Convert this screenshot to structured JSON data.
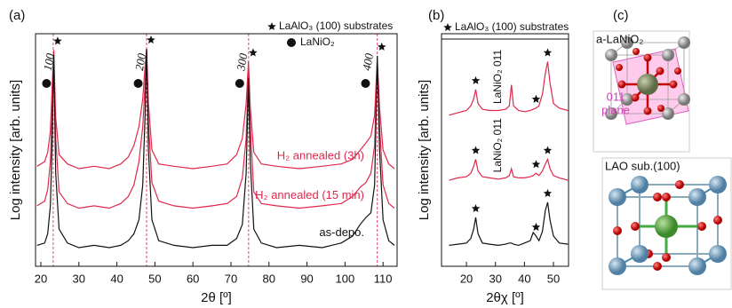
{
  "chart_data": [
    {
      "type": "line",
      "panel_label": "(a)",
      "xlabel": "2θ [º]",
      "ylabel": "Log intensity [arb. units]",
      "xlim": [
        18.6,
        113.7
      ],
      "ylim": [
        0,
        10
      ],
      "xticks": [
        20,
        30,
        40,
        50,
        60,
        70,
        80,
        90,
        100,
        110
      ],
      "substrate_label": "LaAlO₃ (100) substrates",
      "substrate_lines": true,
      "substrate_peaks": [
        23.25,
        47.8,
        74.65,
        108.5
      ],
      "phase_label": "LaNiO₂",
      "phase_peaks": [
        {
          "value": 21.5,
          "label": "100"
        },
        {
          "value": 45.6,
          "label": "200"
        },
        {
          "value": 72.3,
          "label": "300"
        },
        {
          "value": 105.4,
          "label": "400"
        }
      ],
      "x": [
        19,
        21,
        21.8,
        22.5,
        23.0,
        23.4,
        23.9,
        24.8,
        27,
        30,
        34,
        38,
        41,
        43,
        44.5,
        45.8,
        46.8,
        47.4,
        47.8,
        48.3,
        49.2,
        51,
        55,
        60,
        65,
        69,
        71.5,
        73,
        74,
        74.6,
        75.1,
        76,
        78,
        82,
        88,
        94,
        99,
        102,
        104,
        105.5,
        106.8,
        107.8,
        108.5,
        109.1,
        110,
        111.5,
        113
      ],
      "series": [
        {
          "name": "H₂ annealed (3h)",
          "color": "#e0284a",
          "values": [
            4.3,
            4.5,
            4.9,
            5.8,
            7.8,
            9.3,
            6.4,
            4.8,
            4.4,
            4.2,
            4.3,
            4.2,
            4.4,
            4.7,
            5.2,
            6.0,
            7.2,
            8.6,
            9.35,
            7.0,
            5.0,
            4.4,
            4.3,
            4.2,
            4.3,
            4.4,
            4.8,
            5.5,
            7.0,
            8.8,
            6.8,
            4.9,
            4.4,
            4.3,
            4.2,
            4.3,
            4.4,
            4.6,
            5.0,
            5.3,
            5.6,
            6.5,
            8.9,
            6.8,
            5.0,
            4.4,
            4.2
          ]
        },
        {
          "name": "H₂ annealed (15 min)",
          "color": "#e0284a",
          "values": [
            2.6,
            2.8,
            3.3,
            4.5,
            7.0,
            9.15,
            5.5,
            3.2,
            2.7,
            2.5,
            2.6,
            2.5,
            2.7,
            3.0,
            3.5,
            4.5,
            6.0,
            7.8,
            9.3,
            6.2,
            3.6,
            2.8,
            2.6,
            2.5,
            2.6,
            2.7,
            3.0,
            3.8,
            5.5,
            8.4,
            6.0,
            3.2,
            2.7,
            2.6,
            2.5,
            2.6,
            2.7,
            3.0,
            3.4,
            3.6,
            4.0,
            5.2,
            8.8,
            6.0,
            3.5,
            2.7,
            2.5
          ]
        },
        {
          "name": "as-depo.",
          "color": "#111111",
          "values": [
            0.9,
            1.0,
            1.4,
            2.6,
            5.5,
            9.1,
            4.0,
            1.6,
            1.0,
            0.8,
            0.9,
            0.8,
            0.9,
            1.1,
            1.4,
            2.0,
            3.5,
            6.5,
            9.35,
            5.0,
            2.0,
            1.1,
            0.9,
            0.8,
            0.9,
            0.9,
            1.2,
            1.8,
            4.0,
            8.1,
            4.5,
            1.6,
            1.0,
            0.8,
            0.9,
            0.8,
            1.0,
            1.3,
            1.8,
            2.1,
            2.3,
            3.5,
            9.05,
            5.0,
            2.0,
            1.1,
            0.9
          ]
        }
      ]
    },
    {
      "type": "line",
      "panel_label": "(b)",
      "xlabel": "2θχ [º]",
      "ylabel": "Log intensity [arb. units]",
      "xlim": [
        11.4,
        55.2
      ],
      "ylim": [
        0,
        10
      ],
      "xticks": [
        20,
        30,
        40,
        50
      ],
      "substrate_label": "LaAlO₃ (100) substrates",
      "substrate_lines": false,
      "substrate_peaks": [
        23.2,
        44,
        48
      ],
      "x": [
        14,
        17,
        20,
        21.5,
        22.5,
        23.2,
        24,
        25.5,
        28,
        31,
        33.5,
        34.8,
        35.5,
        36.2,
        38,
        40,
        42,
        43,
        44,
        45,
        46.2,
        47.2,
        48,
        48.8,
        50,
        52,
        55
      ],
      "series": [
        {
          "color": "#111111",
          "values": [
            0.9,
            0.95,
            1.0,
            1.2,
            1.6,
            2.1,
            1.4,
            1.0,
            0.95,
            0.9,
            0.95,
            1.0,
            1.0,
            0.95,
            0.9,
            1.0,
            1.1,
            1.45,
            1.3,
            1.1,
            1.5,
            2.4,
            2.75,
            2.0,
            1.3,
            1.0,
            0.95
          ]
        },
        {
          "color": "#e0284a",
          "label": "LaNiO₂ 011",
          "values": [
            3.7,
            3.8,
            3.85,
            4.0,
            4.3,
            4.6,
            4.1,
            3.85,
            3.8,
            3.75,
            3.8,
            3.9,
            4.2,
            3.85,
            3.8,
            3.8,
            3.85,
            3.9,
            4.0,
            3.9,
            4.1,
            4.4,
            4.6,
            4.2,
            3.9,
            3.8,
            3.7
          ]
        },
        {
          "color": "#e0284a",
          "label": "LaNiO₂ 011",
          "values": [
            6.5,
            6.6,
            6.7,
            6.9,
            7.2,
            7.6,
            7.0,
            6.75,
            6.7,
            6.7,
            6.75,
            6.9,
            7.8,
            6.9,
            6.7,
            6.65,
            6.7,
            6.75,
            6.8,
            6.9,
            7.4,
            8.3,
            8.8,
            7.9,
            7.0,
            6.8,
            6.7
          ]
        }
      ]
    }
  ],
  "panel_c": {
    "panel_label": "(c)",
    "top": {
      "title": "a-LaNiO₂",
      "plane_label": [
        "011",
        "plane"
      ]
    },
    "bottom": {
      "title": "LAO sub.(100)"
    }
  }
}
